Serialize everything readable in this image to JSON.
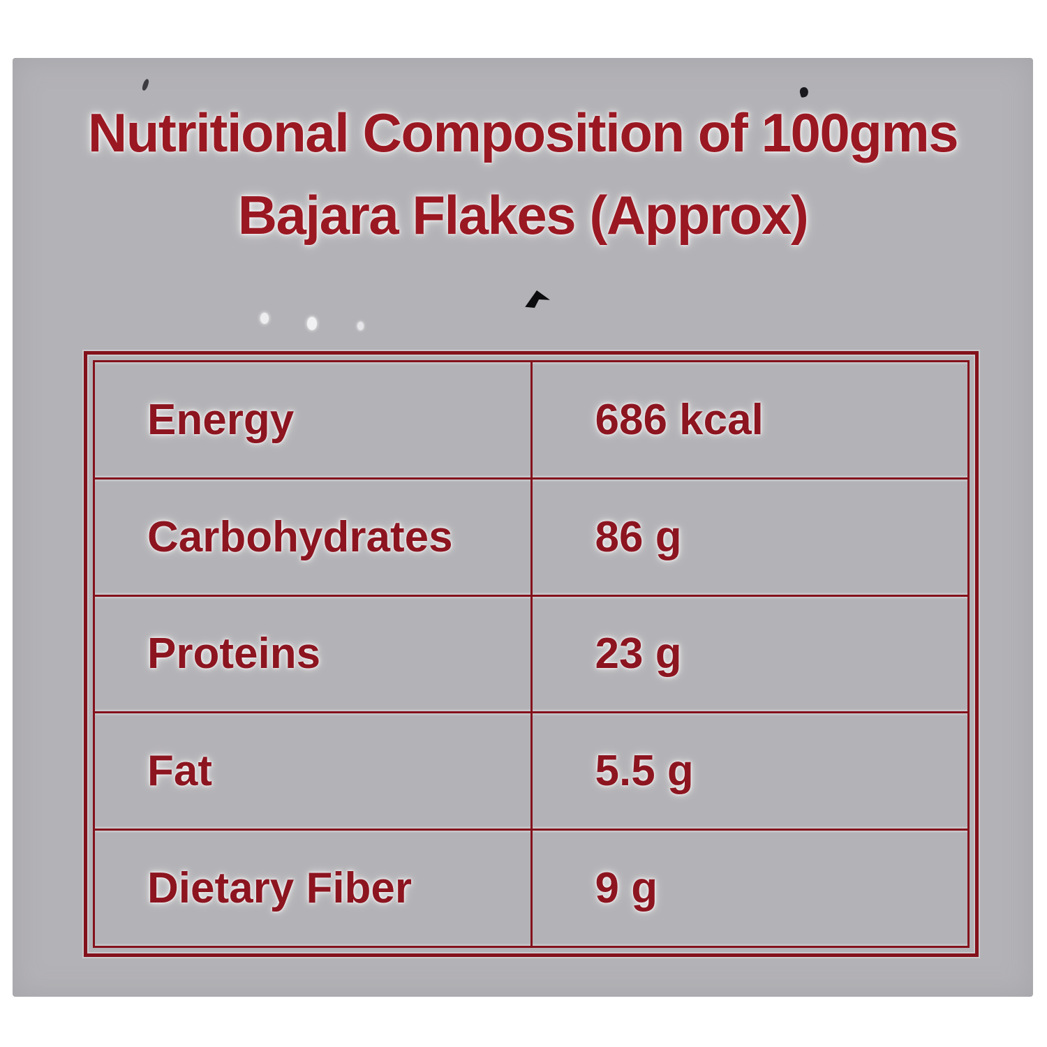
{
  "title": {
    "line1": "Nutritional Composition of 100gms",
    "line2": "Bajara Flakes (Approx)"
  },
  "nutrition_table": {
    "rows": [
      {
        "label": "Energy",
        "value": "686 kcal"
      },
      {
        "label": "Carbohydrates",
        "value": "86 g"
      },
      {
        "label": "Proteins",
        "value": "23 g"
      },
      {
        "label": "Fat",
        "value": "5.5 g"
      },
      {
        "label": "Dietary Fiber",
        "value": "9 g"
      }
    ]
  },
  "colors": {
    "page_background": "#ffffff",
    "panel_background": "#b3b2b6",
    "text_red": "#8c1520",
    "title_red": "#9a1822",
    "border_red": "#83111b"
  }
}
